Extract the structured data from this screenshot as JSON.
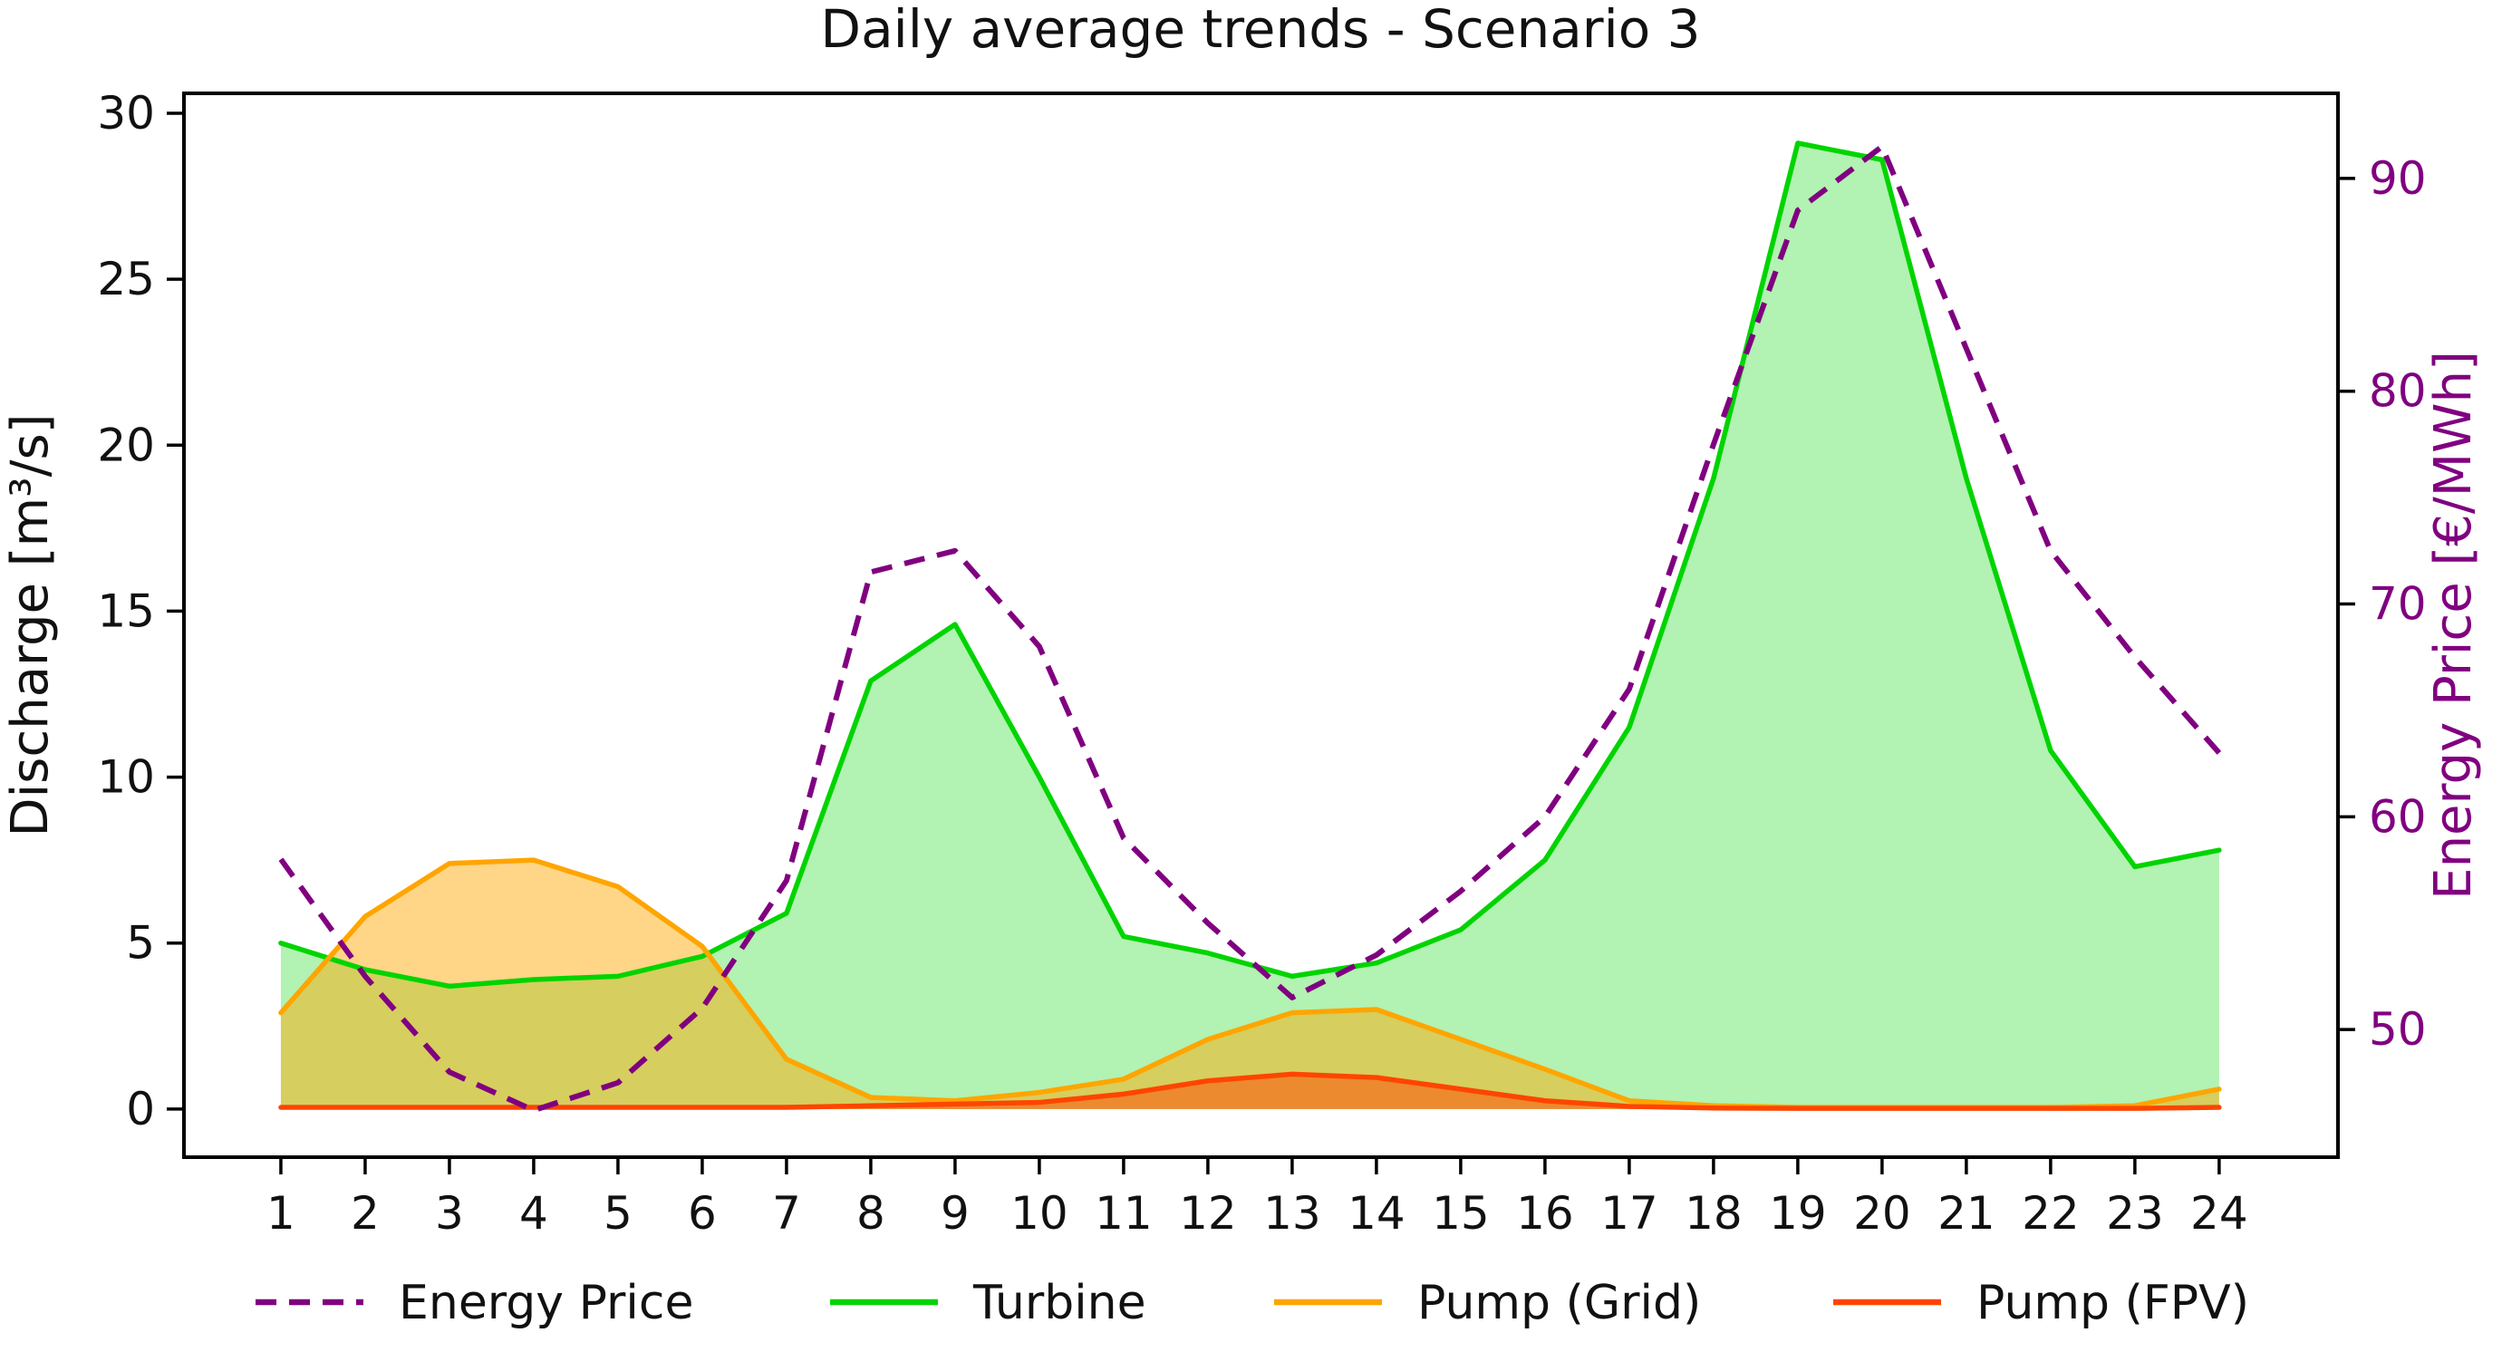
{
  "chart_data": {
    "type": "area",
    "title": "Daily average trends - Scenario 3",
    "xlabel": "",
    "ylabel": "Discharge [m³/s]",
    "y2label": "Energy Price [€/MWh]",
    "x": [
      1,
      2,
      3,
      4,
      5,
      6,
      7,
      8,
      9,
      10,
      11,
      12,
      13,
      14,
      15,
      16,
      17,
      18,
      19,
      20,
      21,
      22,
      23,
      24
    ],
    "x_tick_labels": [
      "1",
      "2",
      "3",
      "4",
      "5",
      "6",
      "7",
      "8",
      "9",
      "10",
      "11",
      "12",
      "13",
      "14",
      "15",
      "16",
      "17",
      "18",
      "19",
      "20",
      "21",
      "22",
      "23",
      "24"
    ],
    "left_ticks": [
      0,
      5,
      10,
      15,
      20,
      25,
      30
    ],
    "right_ticks": [
      50,
      60,
      70,
      80,
      90
    ],
    "xlim": [
      -0.15,
      25.41
    ],
    "ylim_left": [
      -1.45,
      30.6
    ],
    "ylim_right": [
      44,
      94
    ],
    "grid": false,
    "legend_position": "bottom",
    "colors": {
      "energy_price": "#800080",
      "turbine": "#00d400",
      "pump_grid": "#ffa500",
      "pump_fpv": "#ff4500",
      "axis": "#000000",
      "right_axis_text": "#800080"
    },
    "series": [
      {
        "name": "Energy Price",
        "type": "line",
        "axis": "right",
        "dashed": true,
        "color": "#800080",
        "values": [
          58,
          52.5,
          48,
          46.2,
          47.5,
          51,
          57,
          71.5,
          72.5,
          68,
          59,
          55,
          51.5,
          53.5,
          56.5,
          60,
          66,
          77.5,
          88.5,
          91.5,
          82,
          72.5,
          67.5,
          63
        ]
      },
      {
        "name": "Turbine",
        "type": "area",
        "axis": "left",
        "dashed": false,
        "color": "#00d400",
        "fill_opacity": 0.3,
        "values": [
          5.0,
          4.2,
          3.7,
          3.9,
          4.0,
          4.6,
          5.9,
          12.9,
          14.6,
          10.0,
          5.2,
          4.7,
          4.0,
          4.4,
          5.4,
          7.5,
          11.5,
          19.0,
          29.1,
          28.6,
          19.0,
          10.8,
          7.3,
          7.8
        ]
      },
      {
        "name": "Pump (Grid)",
        "type": "area",
        "axis": "left",
        "dashed": false,
        "color": "#ffa500",
        "fill_opacity": 0.47,
        "values": [
          2.9,
          5.8,
          7.4,
          7.5,
          6.7,
          4.9,
          1.5,
          0.35,
          0.25,
          0.5,
          0.9,
          2.1,
          2.9,
          3.0,
          2.1,
          1.2,
          0.25,
          0.1,
          0.05,
          0.05,
          0.05,
          0.05,
          0.1,
          0.6
        ]
      },
      {
        "name": "Pump (FPV)",
        "type": "area",
        "axis": "left",
        "dashed": false,
        "color": "#ff4500",
        "fill_opacity": 0.5,
        "values": [
          0.05,
          0.05,
          0.05,
          0.05,
          0.05,
          0.05,
          0.05,
          0.1,
          0.15,
          0.2,
          0.45,
          0.85,
          1.05,
          0.95,
          0.6,
          0.25,
          0.08,
          0.03,
          0.02,
          0.02,
          0.02,
          0.02,
          0.02,
          0.05
        ]
      }
    ]
  }
}
